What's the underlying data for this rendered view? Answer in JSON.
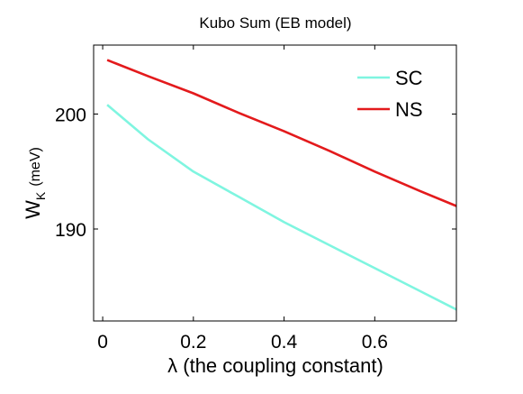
{
  "chart_data": {
    "type": "line",
    "title": "Kubo Sum (EB model)",
    "xlabel": "λ (the coupling constant)",
    "ylabel_main": "W",
    "ylabel_sub": "K",
    "ylabel_unit": "(meV)",
    "xlim": [
      -0.02,
      0.78
    ],
    "ylim": [
      182,
      206
    ],
    "xticks": [
      0,
      0.2,
      0.4,
      0.6
    ],
    "xtick_labels": [
      "0",
      "0.2",
      "0.4",
      "0.6"
    ],
    "yticks": [
      190,
      200
    ],
    "ytick_labels": [
      "190",
      "200"
    ],
    "grid": false,
    "legend_position": "top-right",
    "series": [
      {
        "name": "SC",
        "color": "#7ff5e0",
        "x": [
          0.01,
          0.1,
          0.2,
          0.3,
          0.4,
          0.5,
          0.6,
          0.7,
          0.78
        ],
        "y": [
          200.8,
          197.8,
          195.0,
          192.8,
          190.6,
          188.6,
          186.6,
          184.6,
          183.0
        ]
      },
      {
        "name": "NS",
        "color": "#e31a1c",
        "x": [
          0.01,
          0.1,
          0.2,
          0.3,
          0.4,
          0.5,
          0.6,
          0.7,
          0.78
        ],
        "y": [
          204.7,
          203.3,
          201.8,
          200.1,
          198.5,
          196.8,
          195.0,
          193.3,
          192.0
        ]
      }
    ]
  }
}
